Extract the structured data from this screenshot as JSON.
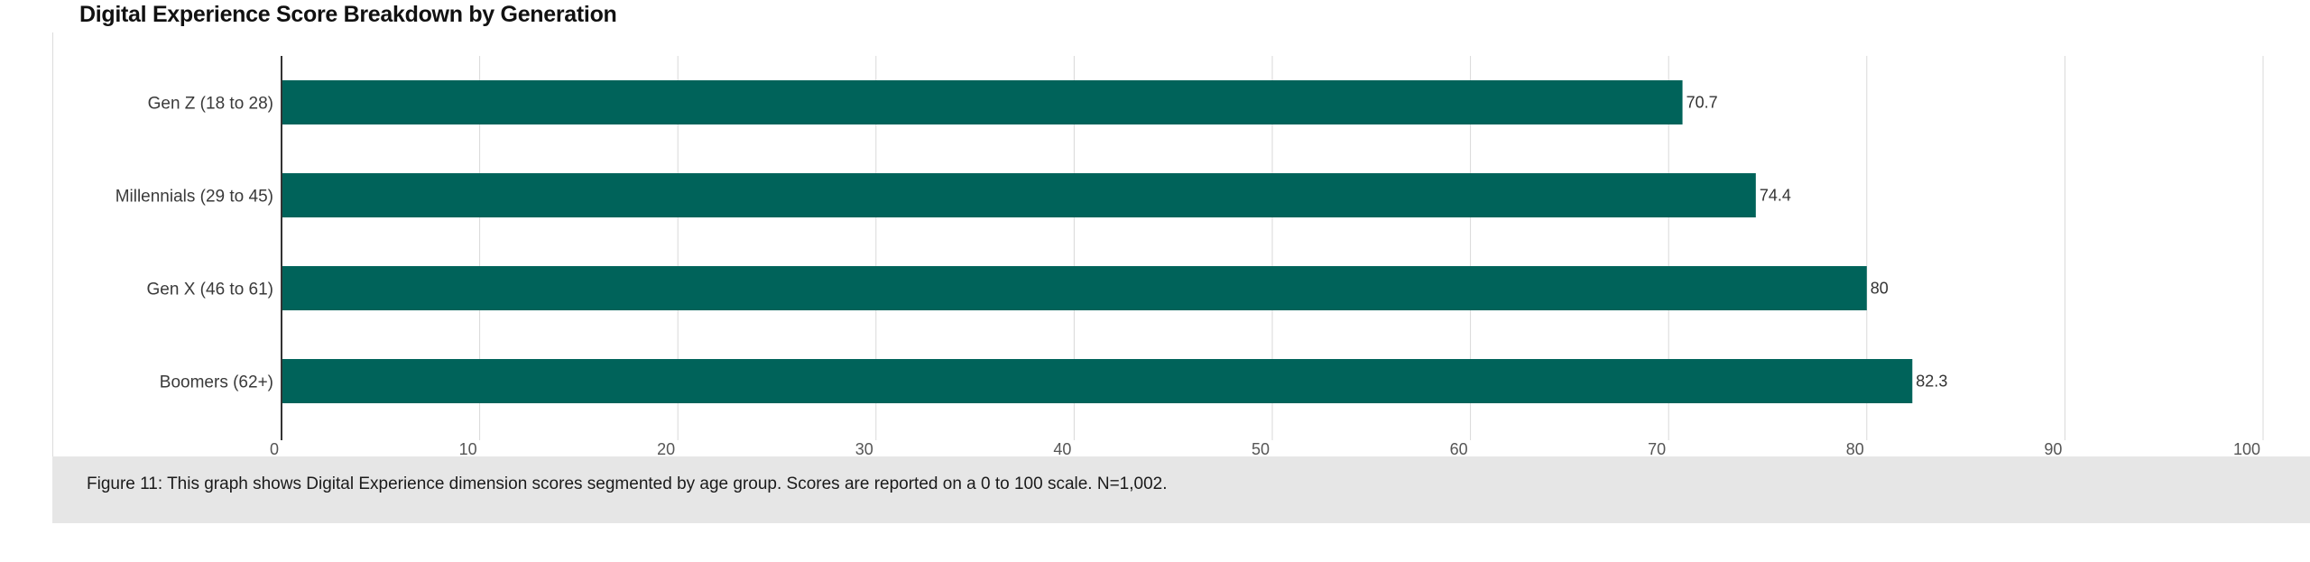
{
  "title": "Digital Experience Score Breakdown by Generation",
  "caption": "Figure 11: This graph shows Digital Experience dimension scores segmented by age group. Scores are reported on a 0 to 100 scale. N=1,002.",
  "colors": {
    "bar": "#00635a",
    "grid": "#d9d9d9",
    "axis": "#333333"
  },
  "chart_data": {
    "type": "bar",
    "orientation": "horizontal",
    "title": "Digital Experience Score Breakdown by Generation",
    "categories": [
      "Gen Z (18 to 28)",
      "Millennials (29 to 45)",
      "Gen X (46 to 61)",
      "Boomers (62+)"
    ],
    "values": [
      70.7,
      74.4,
      80,
      82.3
    ],
    "value_labels": [
      "70.7",
      "74.4",
      "80",
      "82.3"
    ],
    "xlim": [
      0,
      100
    ],
    "xticks": [
      0,
      10,
      20,
      30,
      40,
      50,
      60,
      70,
      80,
      90,
      100
    ],
    "grid": true,
    "legend": "none"
  }
}
